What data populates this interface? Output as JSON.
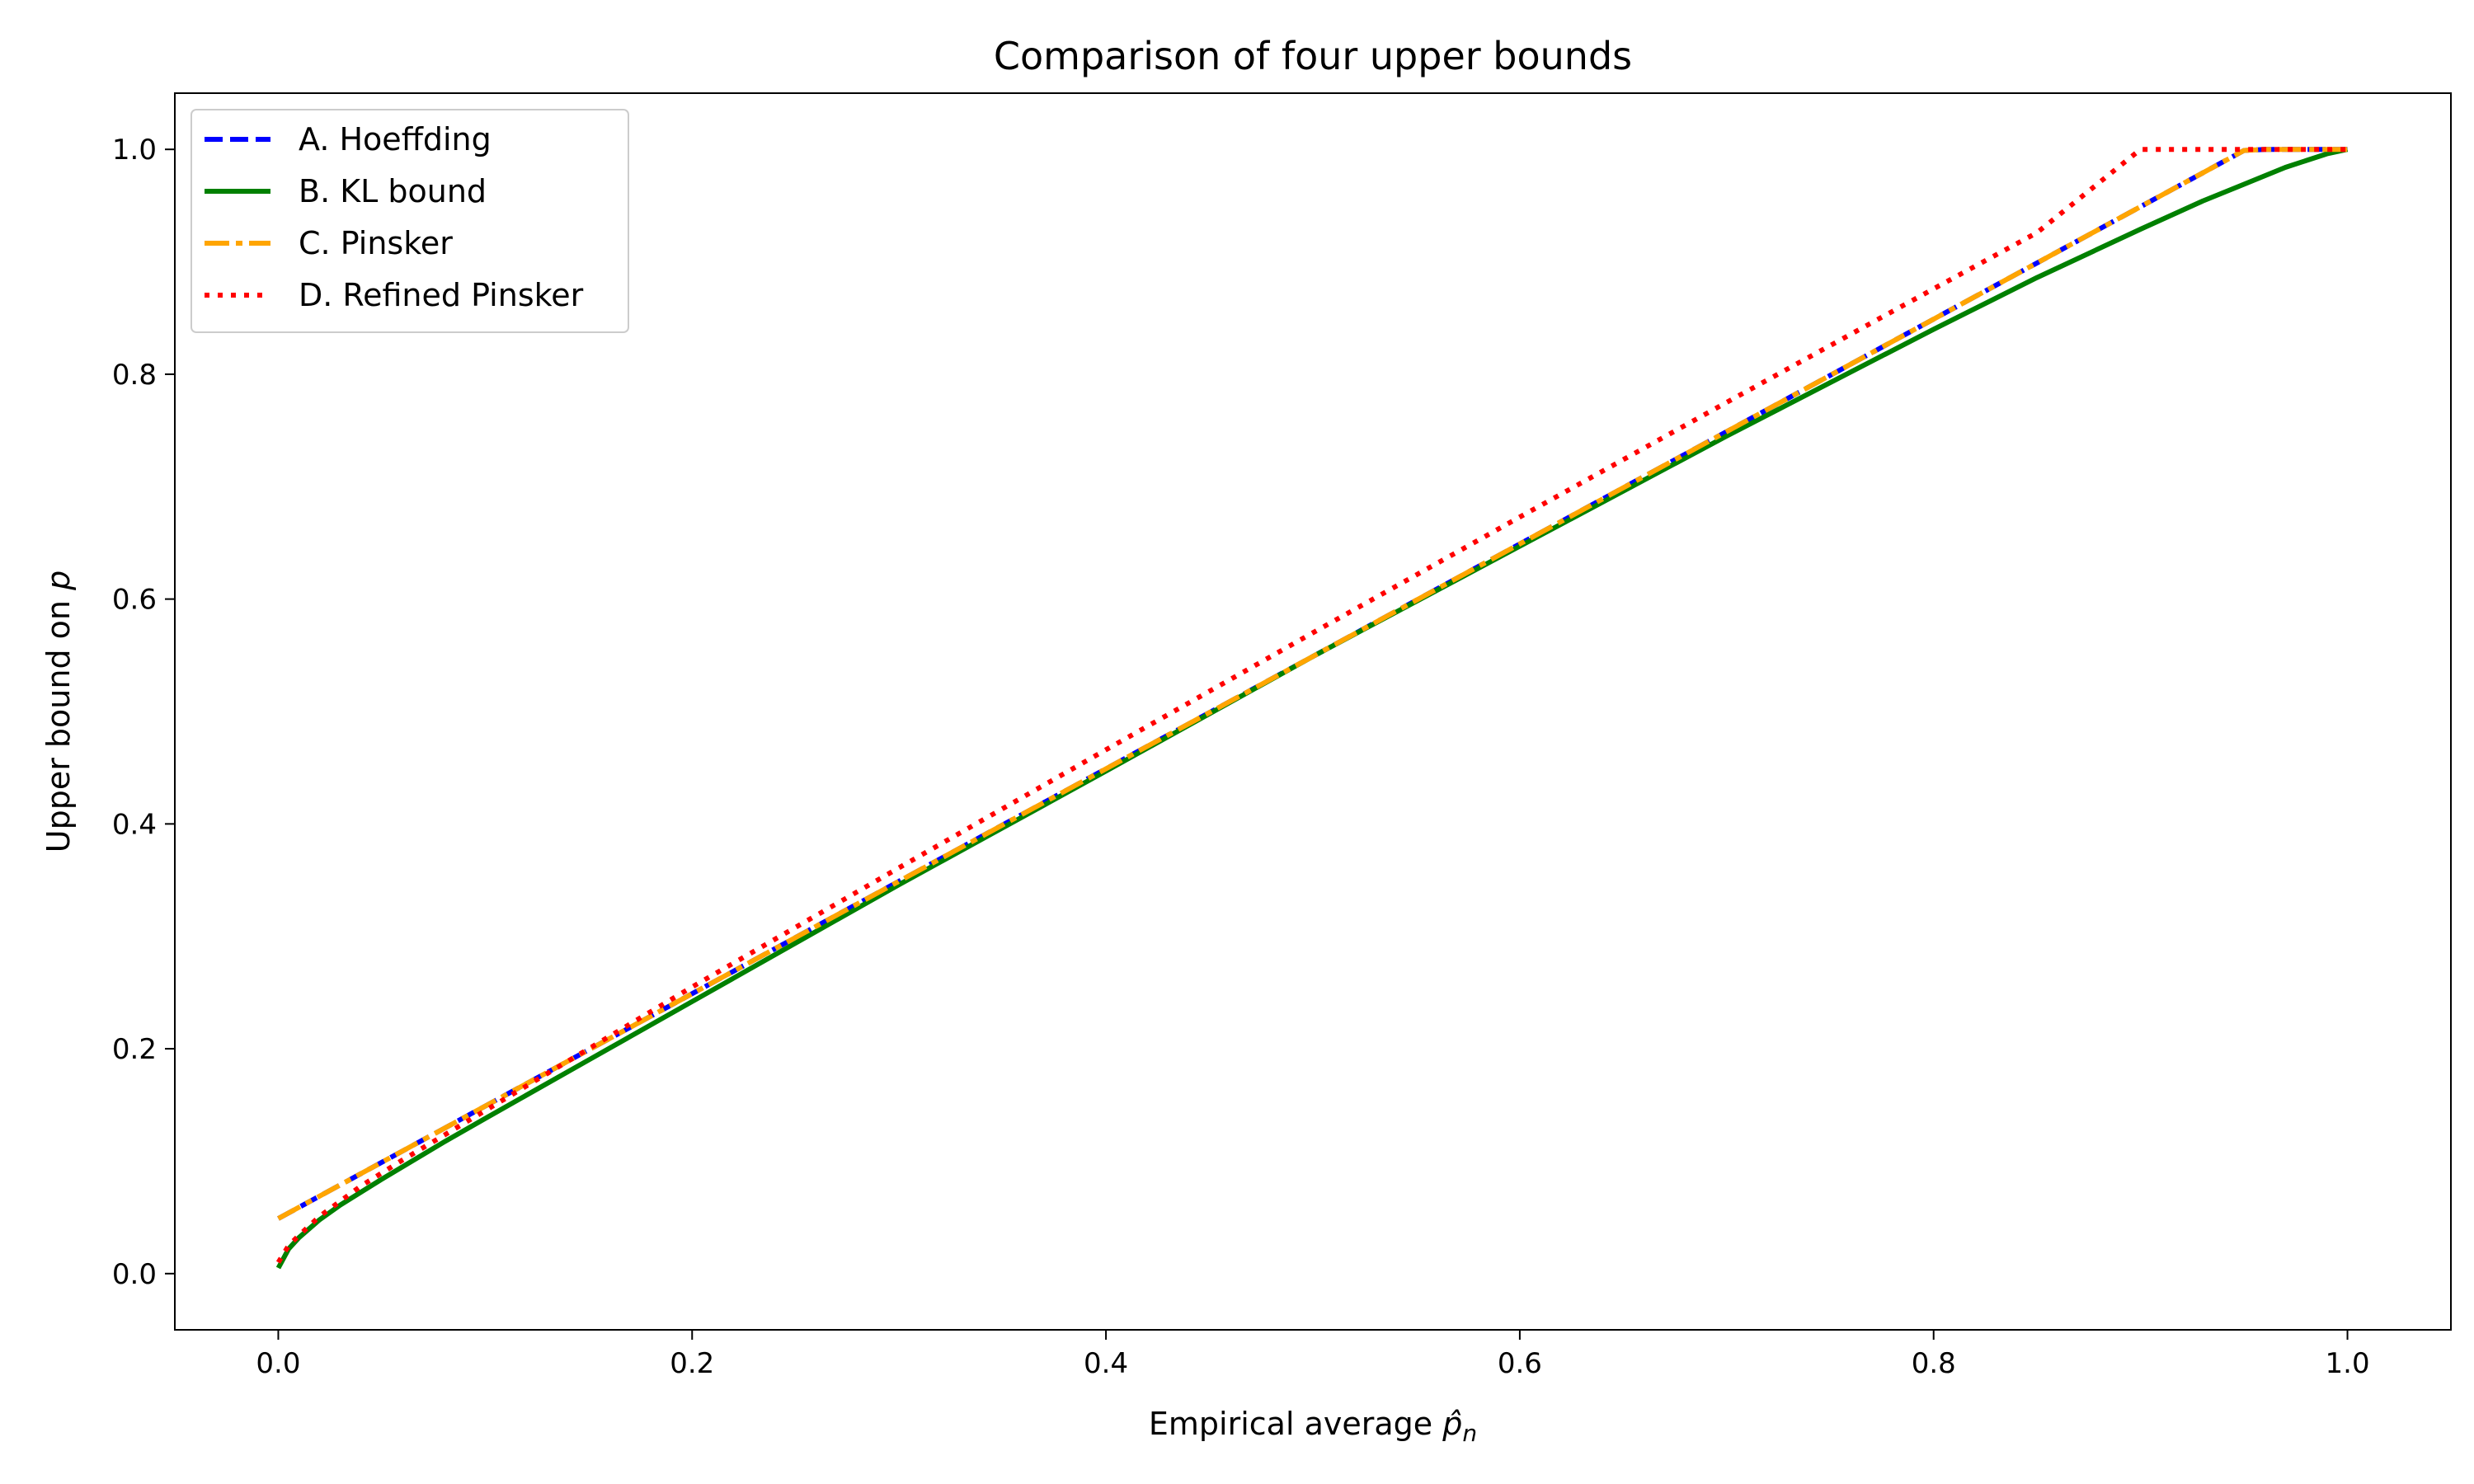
{
  "chart_data": {
    "type": "line",
    "title": "Comparison of four upper bounds",
    "xlabel": {
      "base": "Empirical average ",
      "sym": "p̂",
      "sub": "n"
    },
    "ylabel": {
      "base": "Upper bound on ",
      "sym": "p"
    },
    "xlim": [
      -0.05,
      1.05
    ],
    "ylim": [
      -0.05,
      1.05
    ],
    "xticks": [
      0.0,
      0.2,
      0.4,
      0.6,
      0.8,
      1.0
    ],
    "xtick_labels": [
      "0.0",
      "0.2",
      "0.4",
      "0.6",
      "0.8",
      "1.0"
    ],
    "yticks": [
      0.0,
      0.2,
      0.4,
      0.6,
      0.8,
      1.0
    ],
    "ytick_labels": [
      "0.0",
      "0.2",
      "0.4",
      "0.6",
      "0.8",
      "1.0"
    ],
    "grid": false,
    "legend_position": "top-left",
    "series": [
      {
        "name": "A. Hoeffding",
        "color": "#0000ff",
        "style": "dashed",
        "x": [
          0.0,
          0.1,
          0.2,
          0.3,
          0.4,
          0.5,
          0.6,
          0.7,
          0.8,
          0.9,
          0.95,
          0.96,
          1.0
        ],
        "y": [
          0.049,
          0.149,
          0.249,
          0.349,
          0.449,
          0.549,
          0.649,
          0.749,
          0.849,
          0.949,
          0.999,
          1.0,
          1.0
        ]
      },
      {
        "name": "B. KL bound",
        "color": "#008000",
        "style": "solid",
        "x": [
          0.0,
          0.005,
          0.01,
          0.02,
          0.03,
          0.05,
          0.08,
          0.1,
          0.15,
          0.2,
          0.25,
          0.3,
          0.4,
          0.5,
          0.6,
          0.7,
          0.8,
          0.85,
          0.9,
          0.93,
          0.95,
          0.97,
          0.99,
          1.0
        ],
        "y": [
          0.005,
          0.022,
          0.032,
          0.048,
          0.061,
          0.084,
          0.117,
          0.138,
          0.19,
          0.242,
          0.294,
          0.346,
          0.447,
          0.549,
          0.647,
          0.745,
          0.84,
          0.886,
          0.929,
          0.954,
          0.969,
          0.984,
          0.996,
          1.0
        ]
      },
      {
        "name": "C. Pinsker",
        "color": "#ffa500",
        "style": "dashdot",
        "x": [
          0.0,
          0.1,
          0.2,
          0.3,
          0.4,
          0.5,
          0.6,
          0.7,
          0.8,
          0.9,
          0.95,
          0.96,
          1.0
        ],
        "y": [
          0.049,
          0.149,
          0.249,
          0.349,
          0.449,
          0.549,
          0.649,
          0.749,
          0.849,
          0.949,
          0.999,
          1.0,
          1.0
        ]
      },
      {
        "name": "D. Refined Pinsker",
        "color": "#ff0000",
        "style": "dotted",
        "x": [
          0.0,
          0.005,
          0.01,
          0.02,
          0.04,
          0.06,
          0.1,
          0.15,
          0.2,
          0.3,
          0.4,
          0.5,
          0.6,
          0.7,
          0.8,
          0.85,
          0.9,
          0.95,
          1.0
        ],
        "y": [
          0.01,
          0.025,
          0.034,
          0.051,
          0.078,
          0.101,
          0.145,
          0.2,
          0.255,
          0.361,
          0.466,
          0.57,
          0.673,
          0.775,
          0.876,
          0.926,
          1.0,
          1.0,
          1.0
        ]
      }
    ]
  }
}
